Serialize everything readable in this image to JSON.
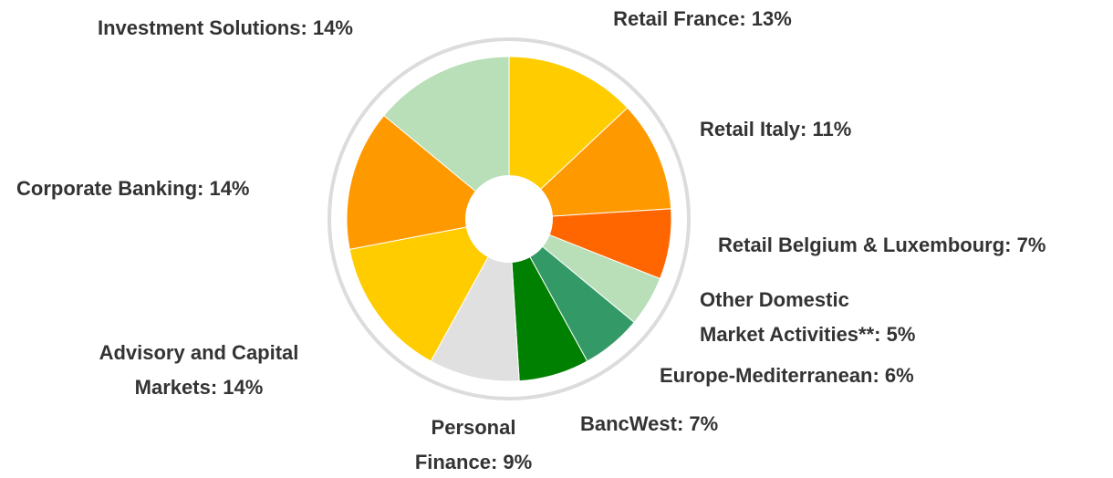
{
  "chart_data": {
    "type": "donut",
    "labels": [
      "Retail France: 13%",
      "Retail Italy: 11%",
      "Retail Belgium & Luxembourg: 7%",
      "Other Domestic\nMarket Activities**: 5%",
      "Europe-Mediterranean: 6%",
      "BancWest: 7%",
      "Personal\nFinance: 9%",
      "Advisory and Capital\nMarkets: 14%",
      "Corporate Banking: 14%",
      "Investment Solutions: 14%"
    ],
    "values": [
      13,
      11,
      7,
      5,
      6,
      7,
      9,
      14,
      14,
      14
    ],
    "colors": [
      "#ffcc00",
      "#ff9900",
      "#ff6600",
      "#b8dfb8",
      "#339966",
      "#008000",
      "#e0e0e0",
      "#ffcc00",
      "#ff9900",
      "#b8dfb8"
    ]
  }
}
